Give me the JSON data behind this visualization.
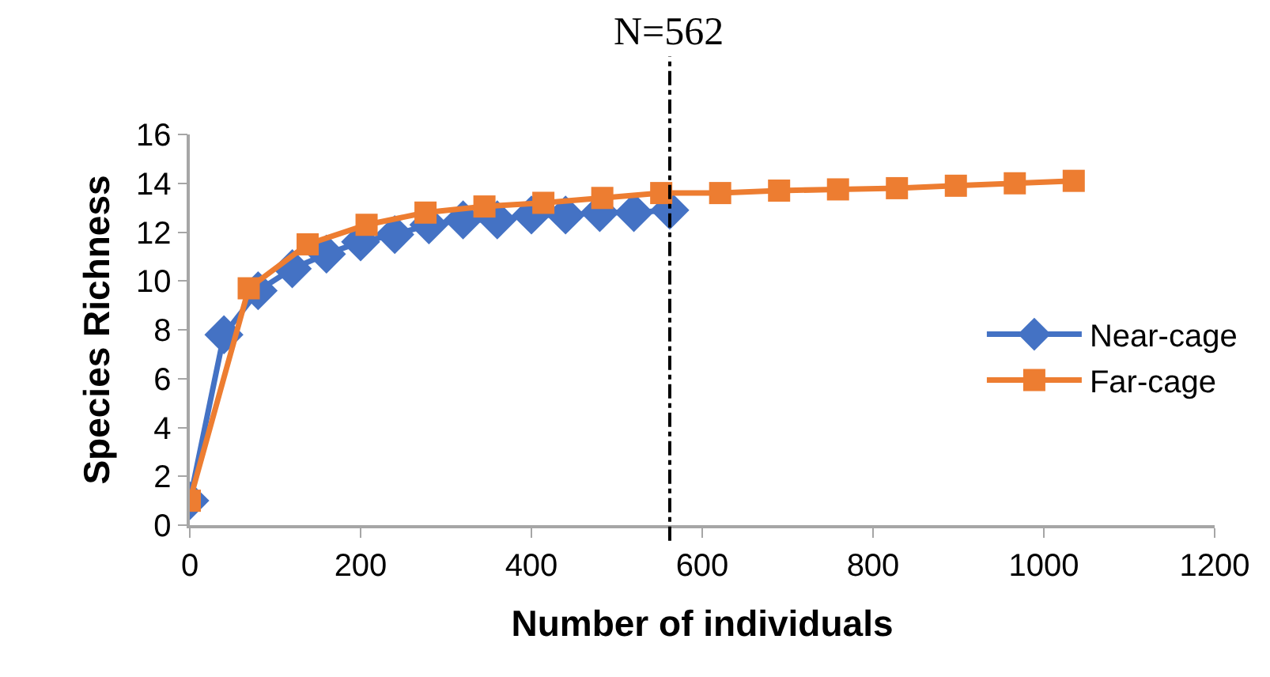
{
  "chart_data": {
    "type": "line",
    "xlabel": "Number of individuals",
    "ylabel": "Species Richness",
    "series": [
      {
        "name": "Near-cage",
        "color": "#4472c4",
        "marker": "diamond",
        "x": [
          0,
          40,
          80,
          120,
          160,
          200,
          240,
          280,
          320,
          360,
          400,
          440,
          480,
          520,
          562
        ],
        "values": [
          1,
          7.8,
          9.6,
          10.5,
          11.1,
          11.6,
          11.9,
          12.3,
          12.5,
          12.5,
          12.7,
          12.7,
          12.8,
          12.8,
          12.9
        ]
      },
      {
        "name": "Far-cage",
        "color": "#ed7d31",
        "marker": "square",
        "x": [
          0,
          69,
          138,
          207,
          276,
          345,
          414,
          483,
          552,
          621,
          690,
          759,
          828,
          897,
          966,
          1035
        ],
        "values": [
          1,
          9.7,
          11.5,
          12.3,
          12.8,
          13.05,
          13.2,
          13.4,
          13.6,
          13.6,
          13.7,
          13.75,
          13.8,
          13.9,
          14,
          14.1
        ]
      }
    ],
    "xlim": [
      0,
      1200
    ],
    "xticks": [
      0,
      200,
      400,
      600,
      800,
      1000,
      1200
    ],
    "ylim": [
      0,
      16
    ],
    "yticks": [
      0,
      2,
      4,
      6,
      8,
      10,
      12,
      14,
      16
    ],
    "ref_lines": [
      {
        "axis": "x",
        "value": 562,
        "label": "N=562",
        "color": "#000000",
        "line_style": "dashdot"
      }
    ],
    "grid": false,
    "legend": "right"
  }
}
